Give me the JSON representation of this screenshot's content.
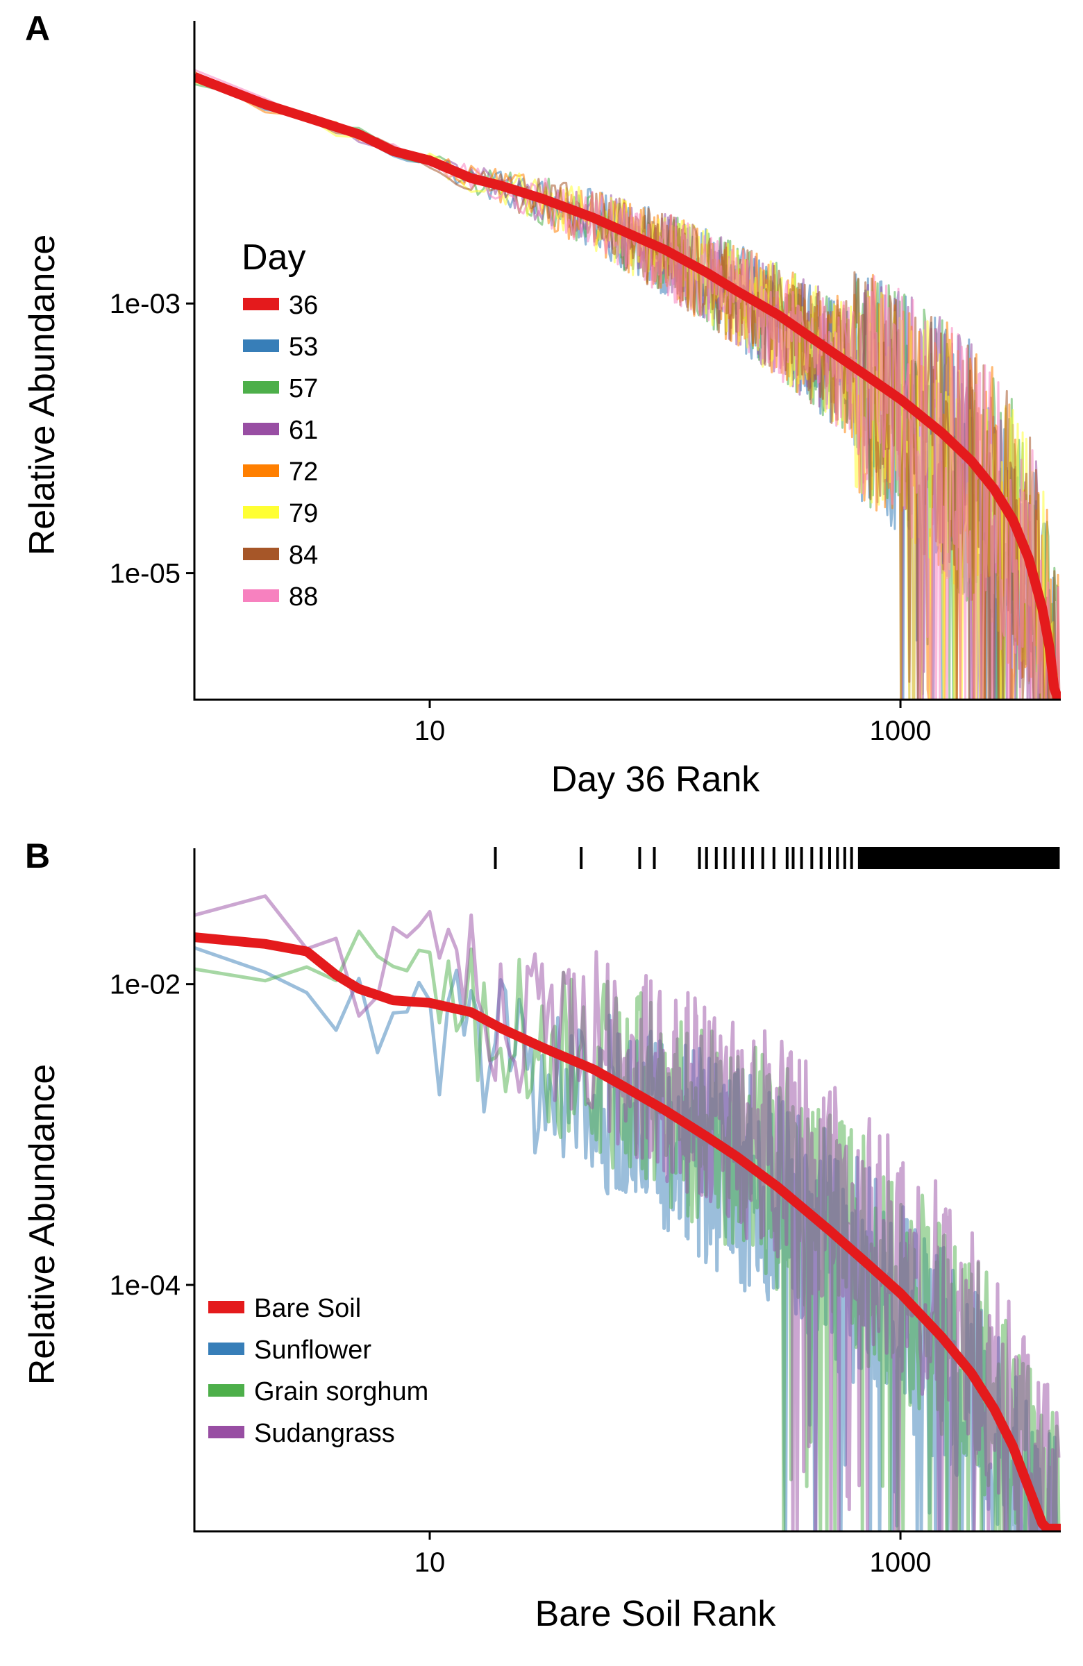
{
  "figure": {
    "panel_a_letter": "A",
    "panel_b_letter": "B"
  },
  "chart_data": [
    {
      "panel": "A",
      "type": "line",
      "title": "",
      "xlabel": "Day 36 Rank",
      "ylabel": "Relative Abundance",
      "xscale": "log",
      "yscale": "log",
      "xlim": [
        1.0,
        4800
      ],
      "ylim": [
        1.15e-06,
        0.125
      ],
      "x_ticks": [
        {
          "value": 10,
          "label": "10"
        },
        {
          "value": 1000,
          "label": "1000"
        }
      ],
      "y_ticks": [
        {
          "value": 0.001,
          "label": "1e-03"
        },
        {
          "value": 1e-05,
          "label": "1e-05"
        }
      ],
      "grid": false,
      "legend": {
        "title": "Day",
        "position": "left-middle"
      },
      "n_ranks": 4750,
      "series": [
        {
          "name": "36",
          "color": "#E41A1C",
          "role": "reference",
          "x": [
            1,
            2,
            3,
            5,
            7,
            10,
            15,
            20,
            30,
            50,
            70,
            100,
            150,
            200,
            300,
            500,
            700,
            1000,
            1500,
            2000,
            2500,
            3000,
            3500,
            4000,
            4300,
            4500,
            4650,
            4750
          ],
          "y": [
            0.048,
            0.03,
            0.024,
            0.018,
            0.0135,
            0.0115,
            0.0085,
            0.0075,
            0.006,
            0.0043,
            0.0033,
            0.0025,
            0.0017,
            0.00125,
            0.00083,
            0.00045,
            0.0003,
            0.000195,
            0.00011,
            6.8e-05,
            4.2e-05,
            2.5e-05,
            1.3e-05,
            5.5e-06,
            2.8e-06,
            1.4e-06,
            1.2e-06,
            1.2e-06
          ]
        },
        {
          "name": "53",
          "color": "#377EB8"
        },
        {
          "name": "57",
          "color": "#4DAF4A"
        },
        {
          "name": "61",
          "color": "#984EA3"
        },
        {
          "name": "72",
          "color": "#FF7F00"
        },
        {
          "name": "79",
          "color": "#FFFF33"
        },
        {
          "name": "84",
          "color": "#A65628"
        },
        {
          "name": "88",
          "color": "#F781BF"
        }
      ]
    },
    {
      "panel": "B",
      "type": "line",
      "title": "",
      "xlabel": "Bare Soil Rank",
      "ylabel": "Relative Abundance",
      "xscale": "log",
      "yscale": "log",
      "xlim": [
        1.0,
        4800
      ],
      "ylim": [
        2.3e-06,
        0.08
      ],
      "x_ticks": [
        {
          "value": 10,
          "label": "10"
        },
        {
          "value": 1000,
          "label": "1000"
        }
      ],
      "y_ticks": [
        {
          "value": 0.01,
          "label": "1e-02"
        },
        {
          "value": 0.0001,
          "label": "1e-04"
        }
      ],
      "grid": false,
      "legend": {
        "position": "bottom-left"
      },
      "rug_ranks_visible": [
        19,
        44,
        78,
        90,
        140,
        150,
        165,
        180,
        195,
        215,
        235,
        260,
        290,
        330,
        350,
        380,
        420,
        460,
        500,
        540,
        580,
        620
      ],
      "series": [
        {
          "name": "Bare Soil",
          "color": "#E41A1C",
          "role": "reference",
          "x": [
            1,
            2,
            3,
            4,
            5,
            7,
            10,
            15,
            20,
            30,
            50,
            70,
            100,
            150,
            200,
            300,
            500,
            700,
            1000,
            1500,
            2000,
            2500,
            3000,
            3500,
            4000,
            4200,
            4300,
            4750
          ],
          "y": [
            0.0205,
            0.0185,
            0.0165,
            0.0115,
            0.0093,
            0.0078,
            0.0075,
            0.0065,
            0.0051,
            0.0038,
            0.0027,
            0.002,
            0.00145,
            0.00097,
            0.00072,
            0.00045,
            0.00023,
            0.000145,
            8.8e-05,
            4.5e-05,
            2.6e-05,
            1.5e-05,
            8.5e-06,
            4.5e-06,
            2.6e-06,
            2.4e-06,
            2.4e-06,
            2.4e-06
          ]
        },
        {
          "name": "Sunflower",
          "color": "#377EB8"
        },
        {
          "name": "Grain sorghum",
          "color": "#4DAF4A"
        },
        {
          "name": "Sudangrass",
          "color": "#984EA3"
        }
      ]
    }
  ]
}
